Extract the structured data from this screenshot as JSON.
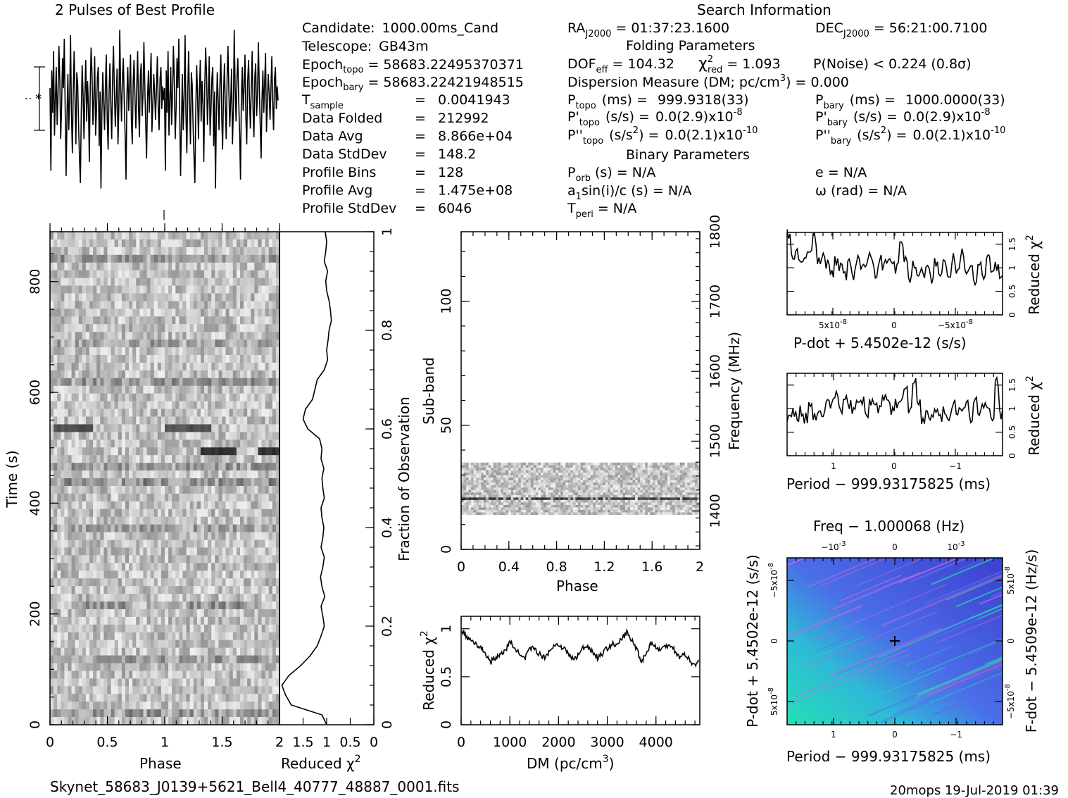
{
  "figure": {
    "pulse_title": "2 Pulses of Best Profile",
    "search_title": "Search Information",
    "filename": "Skynet_58683_J0139+5621_Bell4_40777_48887_0001.fits",
    "footer_right": "20mops  19-Jul-2019 01:39"
  },
  "info": {
    "candidate": {
      "label": "Candidate:",
      "value": "1000.00ms_Cand"
    },
    "telescope": {
      "label": "Telescope:",
      "value": "GB43m"
    },
    "epoch_topo": {
      "label": "Epoch",
      "sub": "topo",
      "value": "= 58683.22495370371"
    },
    "epoch_bary": {
      "label": "Epoch",
      "sub": "bary",
      "value": "= 58683.22421948515"
    },
    "tsample": {
      "label": "T",
      "sub": "sample",
      "eq": "=",
      "value": "0.0041943"
    },
    "rows": [
      {
        "label": "Data Folded",
        "eq": "=",
        "value": "212992"
      },
      {
        "label": "Data Avg",
        "eq": "=",
        "value": "8.866e+04"
      },
      {
        "label": "Data StdDev",
        "eq": "=",
        "value": "148.2"
      },
      {
        "label": "Profile Bins",
        "eq": "=",
        "value": "128"
      },
      {
        "label": "Profile Avg",
        "eq": "=",
        "value": "1.475e+08"
      },
      {
        "label": "Profile StdDev",
        "eq": "=",
        "value": "6046"
      }
    ],
    "ra": {
      "label": "RA",
      "sub": "J2000",
      "value": "= 01:37:23.1600"
    },
    "dec": {
      "label": "DEC",
      "sub": "J2000",
      "value": "= 56:21:00.7100"
    },
    "folding_title": "Folding Parameters",
    "dof": {
      "label": "DOF",
      "sub": "eff",
      "value": "= 104.32"
    },
    "chi": {
      "label": "χ",
      "sup": "2",
      "sub": "red",
      "value": "= 1.093"
    },
    "pnoise": "P(Noise) < 0.224   (0.8σ)",
    "dm": {
      "text": "Dispersion Measure (DM; pc/cm",
      "sup": "3",
      "tail": ") = 0.000"
    },
    "ptopo": {
      "label": "P",
      "sub": "topo",
      "unit": "(ms) =",
      "value": "999.9318(33)"
    },
    "pbary": {
      "label": "P",
      "sub": "bary",
      "unit": "(ms) =",
      "value": "1000.0000(33)"
    },
    "pdtopo": {
      "label": "P'",
      "sub": "topo",
      "unit": "(s/s) =",
      "value": "0.0(2.9)x10",
      "exp": "-8"
    },
    "pdbary": {
      "label": "P'",
      "sub": "bary",
      "unit": "(s/s) =",
      "value": "0.0(2.9)x10",
      "exp": "-8"
    },
    "pddtopo": {
      "label": "P''",
      "sub": "topo",
      "unit": "(s/s",
      "usup": "2",
      "unit2": ") =",
      "value": "0.0(2.1)x10",
      "exp": "-10"
    },
    "pddbary": {
      "label": "P''",
      "sub": "bary",
      "unit": "(s/s",
      "usup": "2",
      "unit2": ") =",
      "value": "0.0(2.1)x10",
      "exp": "-10"
    },
    "binary_title": "Binary Parameters",
    "porb": {
      "label": "P",
      "sub": "orb",
      "value": "(s) = N/A"
    },
    "asini": {
      "label": "a",
      "sub": "1",
      "value": "sin(i)/c (s) = N/A"
    },
    "tperi": {
      "label": "T",
      "sub": "peri",
      "value": "= N/A"
    },
    "ecc": "e = N/A",
    "omega": "ω (rad) = N/A"
  },
  "chart_data": [
    {
      "id": "profile",
      "type": "line",
      "title": "2 Pulses of Best Profile",
      "xlim": [
        0,
        2
      ],
      "n_bins_per_pulse": 128,
      "note_values": "normalized profile, 128 bins repeated twice",
      "values": [
        0.62,
        0.15,
        0.72,
        0.48,
        0.83,
        0.35,
        0.55,
        0.74,
        0.41,
        0.58,
        0.86,
        0.66,
        0.33,
        0.51,
        0.79,
        0.62,
        0.9,
        0.5,
        0.12,
        0.44,
        0.7,
        0.38,
        0.58,
        0.92,
        0.47,
        0.25,
        0.6,
        0.83,
        0.55,
        0.3,
        0.71,
        0.64,
        0.4,
        0.22,
        0.08,
        0.5,
        0.75,
        0.58,
        0.33,
        0.6,
        0.78,
        0.43,
        0.66,
        0.52,
        0.2,
        0.62,
        0.85,
        0.7,
        0.41,
        0.57,
        0.8,
        0.35,
        0.5,
        0.68,
        0.74,
        0.29,
        0.6,
        0.05,
        0.47,
        0.71,
        0.55,
        0.38,
        0.64,
        0.81,
        0.45,
        0.27,
        0.59,
        0.76,
        0.52,
        0.33,
        0.68,
        0.86,
        0.6,
        0.4,
        0.55,
        0.73,
        0.3,
        0.5,
        0.95,
        0.62,
        0.43,
        0.68,
        0.79,
        0.54,
        0.36,
        0.1,
        0.58,
        0.74,
        0.49,
        0.62,
        0.81,
        0.44,
        0.3,
        0.66,
        0.78,
        0.57,
        0.39,
        0.61,
        0.83,
        0.5,
        0.34,
        0.69,
        0.76,
        0.46,
        0.58,
        0.88,
        0.63,
        0.41,
        0.22,
        0.55,
        0.72,
        0.48,
        0.65,
        0.82,
        0.37,
        0.53,
        0.7,
        0.59,
        0.44,
        0.61,
        0.8,
        0.52,
        0.38,
        0.67,
        0.74,
        0.5,
        0.63,
        0.55
      ]
    },
    {
      "id": "time-phase",
      "type": "heatmap",
      "xlabel": "Phase",
      "ylabel": "Time (s)",
      "xlim": [
        0,
        2
      ],
      "ylim": [
        0,
        890
      ],
      "xticks": [
        "0",
        "0.5",
        "1",
        "1.5",
        "2"
      ],
      "yticks": [
        "0",
        "200",
        "400",
        "600",
        "800"
      ],
      "y2label": "Fraction of Observation",
      "y2ticks": [
        "0",
        "0.2",
        "0.4",
        "0.6",
        "0.8",
        "1"
      ]
    },
    {
      "id": "time-chi",
      "type": "line",
      "xlabel": "Reduced χ",
      "xlabel_sup": "2",
      "xticks": [
        "2",
        "1.5",
        "1",
        "0.5",
        "0"
      ],
      "xlim": [
        2,
        0
      ],
      "ylim": [
        0,
        1
      ],
      "fraction": [
        0,
        0.02,
        0.04,
        0.06,
        0.08,
        0.1,
        0.12,
        0.14,
        0.16,
        0.18,
        0.2,
        0.22,
        0.24,
        0.26,
        0.28,
        0.3,
        0.32,
        0.34,
        0.36,
        0.38,
        0.4,
        0.42,
        0.44,
        0.46,
        0.48,
        0.5,
        0.52,
        0.54,
        0.56,
        0.58,
        0.6,
        0.62,
        0.64,
        0.66,
        0.68,
        0.7,
        0.72,
        0.74,
        0.76,
        0.78,
        0.8,
        0.82,
        0.84,
        0.86,
        0.88,
        0.9,
        0.92,
        0.94,
        0.96,
        0.98,
        1.0
      ],
      "chi": [
        1.0,
        1.1,
        1.75,
        1.87,
        1.95,
        1.8,
        1.55,
        1.35,
        1.2,
        1.12,
        1.05,
        1.08,
        1.12,
        1.04,
        1.1,
        1.13,
        1.08,
        1.05,
        1.12,
        1.08,
        1.06,
        1.1,
        1.12,
        1.05,
        1.08,
        1.1,
        1.06,
        1.12,
        1.1,
        1.15,
        1.4,
        1.5,
        1.45,
        1.3,
        1.25,
        1.2,
        1.05,
        0.98,
        1.0,
        0.97,
        0.95,
        0.9,
        0.92,
        0.95,
        1.0,
        1.02,
        0.98,
        1.05,
        1.02,
        1.0,
        1.03
      ]
    },
    {
      "id": "subband-phase",
      "type": "heatmap",
      "xlabel": "Phase",
      "ylabel": "Sub-band",
      "xlim": [
        0,
        2
      ],
      "ylim": [
        0,
        128
      ],
      "xticks": [
        "0",
        "0.4",
        "0.8",
        "1.2",
        "1.6",
        "2"
      ],
      "yticks": [
        "0",
        "50",
        "100"
      ],
      "y2label": "Frequency (MHz)",
      "y2ticks": [
        "1400",
        "1500",
        "1600",
        "1700",
        "1800"
      ],
      "occupied_subbands": [
        14,
        35
      ]
    },
    {
      "id": "dm-chi",
      "type": "line",
      "xlabel": "DM (pc/cm",
      "xlabel_sup": "3",
      "xlabel_tail": ")",
      "ylabel": "Reduced χ",
      "ylabel_sup": "2",
      "xlim": [
        0,
        4900
      ],
      "ylim": [
        0,
        1.13
      ],
      "xticks": [
        "0",
        "1000",
        "2000",
        "3000",
        "4000"
      ],
      "yticks": [
        "0",
        "0.5",
        "1"
      ],
      "x": [
        0,
        100,
        200,
        300,
        400,
        500,
        600,
        700,
        800,
        900,
        1000,
        1100,
        1200,
        1300,
        1400,
        1500,
        1600,
        1700,
        1800,
        1900,
        2000,
        2100,
        2200,
        2300,
        2400,
        2500,
        2600,
        2700,
        2800,
        2900,
        3000,
        3100,
        3200,
        3300,
        3400,
        3500,
        3600,
        3700,
        3800,
        3900,
        4000,
        4100,
        4200,
        4300,
        4400,
        4500,
        4600,
        4700,
        4800,
        4900
      ],
      "y": [
        1.0,
        0.92,
        0.88,
        0.85,
        0.8,
        0.75,
        0.65,
        0.7,
        0.72,
        0.78,
        0.85,
        0.82,
        0.72,
        0.68,
        0.78,
        0.8,
        0.74,
        0.7,
        0.76,
        0.82,
        0.84,
        0.8,
        0.74,
        0.68,
        0.72,
        0.8,
        0.82,
        0.76,
        0.7,
        0.74,
        0.8,
        0.84,
        0.82,
        0.9,
        0.96,
        0.88,
        0.8,
        0.66,
        0.74,
        0.86,
        0.8,
        0.78,
        0.82,
        0.84,
        0.76,
        0.7,
        0.74,
        0.66,
        0.62,
        0.7
      ]
    },
    {
      "id": "pdot-chi",
      "type": "line",
      "xlabel": "P-dot + 5.4502e-12 (s/s)",
      "ylabel": "Reduced χ",
      "ylabel_sup": "2",
      "xlim": [
        8.7e-08,
        -8.7e-08
      ],
      "ylim": [
        0,
        1.75
      ],
      "xticks": [
        "5x10",
        "0",
        "−5x10"
      ],
      "xticks_sup": [
        "-8",
        "",
        "-8"
      ],
      "yticks": [
        "0",
        "0.5",
        "1",
        "1.5"
      ],
      "y": [
        1.7,
        1.2,
        1.3,
        1.1,
        1.25,
        1.35,
        1.6,
        1.2,
        1.3,
        1.05,
        0.9,
        1.15,
        1.0,
        0.8,
        1.1,
        0.85,
        1.2,
        1.0,
        1.1,
        1.25,
        0.9,
        1.15,
        1.05,
        1.2,
        1.1,
        1.0,
        1.5,
        1.2,
        0.8,
        1.1,
        0.85,
        0.9,
        1.0,
        0.75,
        1.1,
        0.9,
        1.05,
        0.8,
        1.2,
        0.9,
        1.3,
        0.85,
        1.0,
        0.7,
        1.1,
        0.85,
        1.2,
        0.9,
        1.0,
        0.75
      ]
    },
    {
      "id": "period-chi",
      "type": "line",
      "xlabel": "Period − 999.93175825 (ms)",
      "ylabel": "Reduced χ",
      "ylabel_sup": "2",
      "xlim": [
        1.77,
        -1.77
      ],
      "ylim": [
        0,
        1.75
      ],
      "xticks": [
        "1",
        "0",
        "−1"
      ],
      "yticks": [
        "0",
        "0.5",
        "1",
        "1.5"
      ],
      "y": [
        0.8,
        0.9,
        0.85,
        0.95,
        0.8,
        1.05,
        0.85,
        1.0,
        0.9,
        1.15,
        1.1,
        1.3,
        1.0,
        1.2,
        1.1,
        0.95,
        1.05,
        1.15,
        0.9,
        1.1,
        1.2,
        1.0,
        1.3,
        1.15,
        0.95,
        1.1,
        1.25,
        1.35,
        1.0,
        1.6,
        1.1,
        0.8,
        0.9,
        0.85,
        1.0,
        0.75,
        0.95,
        0.85,
        1.1,
        0.9,
        0.95,
        1.05,
        0.8,
        1.2,
        0.9,
        1.0,
        1.1,
        0.8,
        1.6,
        0.9
      ]
    },
    {
      "id": "pdot-period-map",
      "type": "heatmap",
      "title": "Freq − 1.000068 (Hz)",
      "xlabel": "Period − 999.93175825 (ms)",
      "ylabel": "P-dot + 5.4502e-12 (s/s)",
      "y2label": "F-dot − 5.4509e-12 (Hz/s)",
      "xticks": [
        "1",
        "0",
        "−1"
      ],
      "x2ticks": [
        "−10",
        "0",
        "10"
      ],
      "x2ticks_sup": [
        "-3",
        "",
        "-3"
      ],
      "yticks": [
        "5x10",
        "0",
        "−5x10"
      ],
      "yticks_sup": [
        "-8",
        "",
        "-8"
      ],
      "y2ticks": [
        "−5x10",
        "0",
        "5x10"
      ],
      "y2ticks_sup": [
        "-8",
        "",
        "-8"
      ],
      "colors": {
        "low": "#3a2fc8",
        "mid": "#5a6cf0",
        "high": "#1fe3b0",
        "streak": "#c46ad8"
      },
      "best": [
        0,
        0
      ]
    }
  ]
}
